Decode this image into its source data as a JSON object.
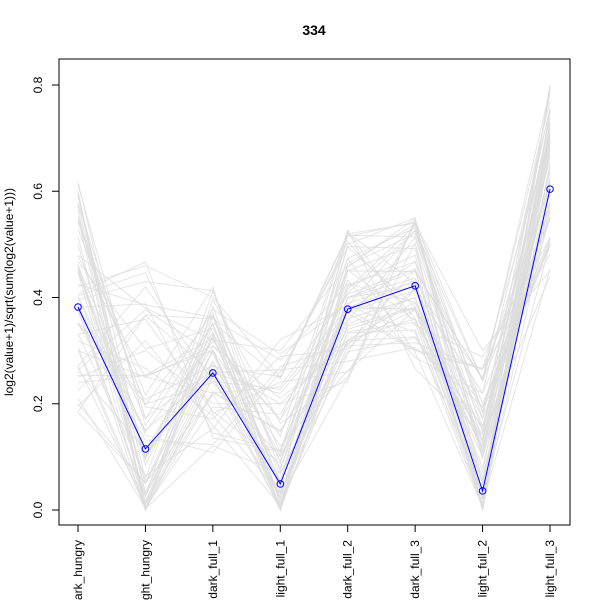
{
  "chart_data": {
    "type": "line",
    "title": "334",
    "xlabel": "",
    "ylabel": "log2(value+1)/sqrt(sum(log2(value+1)))",
    "categories": [
      "dark_hungry",
      "light_hungry",
      "dark_full_1",
      "light_full_1",
      "dark_full_2",
      "dark_full_3",
      "light_full_2",
      "light_full_3"
    ],
    "ylim": [
      0,
      0.8
    ],
    "yticks": [
      0.0,
      0.2,
      0.4,
      0.6,
      0.8
    ],
    "series": [
      {
        "values": [
          0.382,
          0.115,
          0.258,
          0.049,
          0.378,
          0.422,
          0.036,
          0.604
        ]
      }
    ],
    "background_series_count": 60,
    "background_series": [
      {
        "values": [
          0.55,
          0.0,
          0.33,
          0.0,
          0.45,
          0.5,
          0.0,
          0.75
        ]
      },
      {
        "values": [
          0.5,
          0.05,
          0.3,
          0.02,
          0.42,
          0.48,
          0.02,
          0.7
        ]
      },
      {
        "values": [
          0.45,
          0.1,
          0.28,
          0.05,
          0.4,
          0.45,
          0.05,
          0.65
        ]
      },
      {
        "values": [
          0.4,
          0.15,
          0.26,
          0.08,
          0.38,
          0.43,
          0.06,
          0.62
        ]
      },
      {
        "values": [
          0.35,
          0.2,
          0.24,
          0.1,
          0.36,
          0.4,
          0.08,
          0.6
        ]
      },
      {
        "values": [
          0.3,
          0.25,
          0.22,
          0.15,
          0.34,
          0.38,
          0.1,
          0.58
        ]
      },
      {
        "values": [
          0.25,
          0.3,
          0.2,
          0.2,
          0.32,
          0.36,
          0.12,
          0.55
        ]
      },
      {
        "values": [
          0.6,
          0.0,
          0.35,
          0.0,
          0.5,
          0.55,
          0.0,
          0.8
        ]
      },
      {
        "values": [
          0.48,
          0.38,
          0.32,
          0.3,
          0.46,
          0.52,
          0.2,
          0.5
        ]
      },
      {
        "values": [
          0.42,
          0.46,
          0.4,
          0.25,
          0.52,
          0.54,
          0.3,
          0.45
        ]
      },
      {
        "values": [
          0.2,
          0.05,
          0.3,
          0.0,
          0.4,
          0.42,
          0.0,
          0.68
        ]
      },
      {
        "values": [
          0.38,
          0.0,
          0.25,
          0.0,
          0.35,
          0.4,
          0.02,
          0.72
        ]
      }
    ]
  }
}
